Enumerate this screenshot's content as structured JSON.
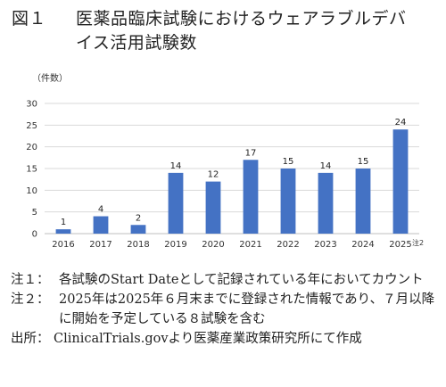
{
  "figure": {
    "number": "図１",
    "title_line1": "医薬品臨床試験におけるウェアラブルデバ",
    "title_line2": "イス活用試験数"
  },
  "chart_data": {
    "type": "bar",
    "title": "",
    "xlabel": "",
    "ylabel": "（件数）",
    "categories": [
      "2016",
      "2017",
      "2018",
      "2019",
      "2020",
      "2021",
      "2022",
      "2023",
      "2024",
      "2025"
    ],
    "values": [
      1,
      4,
      2,
      14,
      12,
      17,
      15,
      14,
      15,
      24
    ],
    "ylim": [
      0,
      30
    ],
    "yticks": [
      0,
      5,
      10,
      15,
      20,
      25,
      30
    ],
    "grid": "horizontal",
    "bar_color": "#4472c4",
    "legend": "none",
    "category_note": {
      "category": "2025",
      "text": "注2"
    }
  },
  "notes": [
    {
      "label": "注１：",
      "text": "各試験のStart Dateとして記録されている年においてカウント"
    },
    {
      "label": "注２：",
      "text": "2025年は2025年６月末までに登録された情報であり、７月以降に開始を予定している８試験を含む"
    }
  ],
  "source": {
    "label": "出所：",
    "text": "ClinicalTrials.govより医薬産業政策研究所にて作成"
  }
}
